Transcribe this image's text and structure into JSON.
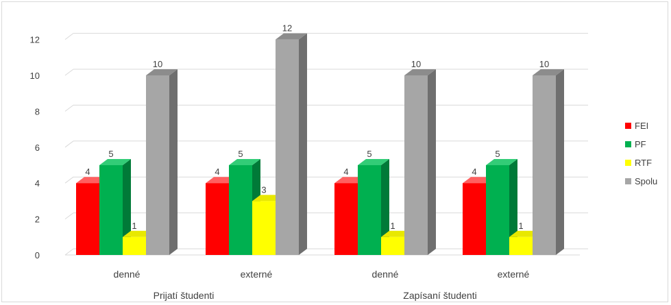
{
  "chart_data": {
    "type": "bar",
    "title": "",
    "xlabel": "",
    "ylabel": "",
    "ylim": [
      0,
      12
    ],
    "yticks": [
      0,
      2,
      4,
      6,
      8,
      10,
      12
    ],
    "grid": true,
    "legend_position": "right",
    "groups": [
      {
        "label": "Prijatí študenti",
        "categories": [
          "denné",
          "externé"
        ]
      },
      {
        "label": "Zapísaní študenti",
        "categories": [
          "denné",
          "externé"
        ]
      }
    ],
    "categories": [
      "denné",
      "externé",
      "denné",
      "externé"
    ],
    "series": [
      {
        "name": "FEI",
        "color": "#ff0000",
        "side": "#b00000",
        "top": "#ff6060",
        "values": [
          4,
          4,
          4,
          4
        ]
      },
      {
        "name": "PF",
        "color": "#00b050",
        "side": "#007a38",
        "top": "#33cc77",
        "values": [
          5,
          5,
          5,
          5
        ]
      },
      {
        "name": "RTF",
        "color": "#ffff00",
        "side": "#c0c000",
        "top": "#e8e800",
        "values": [
          1,
          3,
          1,
          1
        ]
      },
      {
        "name": "Spolu",
        "color": "#a6a6a6",
        "side": "#6f6f6f",
        "top": "#8c8c8c",
        "values": [
          10,
          12,
          10,
          10
        ]
      }
    ]
  }
}
